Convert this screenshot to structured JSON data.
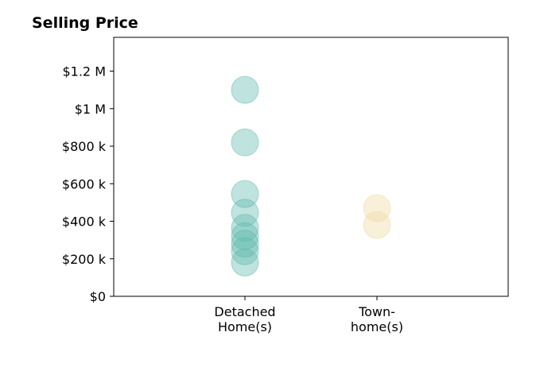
{
  "chart_data": {
    "type": "scatter",
    "title": "Selling Price",
    "xlabel": "",
    "ylabel": "",
    "categories": [
      [
        "Detached",
        "Home(s)"
      ],
      [
        "Town-",
        "home(s)"
      ]
    ],
    "ylim": [
      0,
      1380000
    ],
    "y_ticks": [
      {
        "value": 0,
        "label": "$0"
      },
      {
        "value": 200000,
        "label": "$200 k"
      },
      {
        "value": 400000,
        "label": "$400 k"
      },
      {
        "value": 600000,
        "label": "$600 k"
      },
      {
        "value": 800000,
        "label": "$800 k"
      },
      {
        "value": 1000000,
        "label": "$1 M"
      },
      {
        "value": 1200000,
        "label": "$1.2 M"
      }
    ],
    "grid": false,
    "series": [
      {
        "category_index": 0,
        "color": "#5fb8ad",
        "values": [
          1100000,
          820000,
          545000,
          445000,
          365000,
          320000,
          280000,
          240000,
          180000
        ]
      },
      {
        "category_index": 1,
        "color": "#f0d9a0",
        "values": [
          470000,
          380000
        ]
      }
    ]
  }
}
